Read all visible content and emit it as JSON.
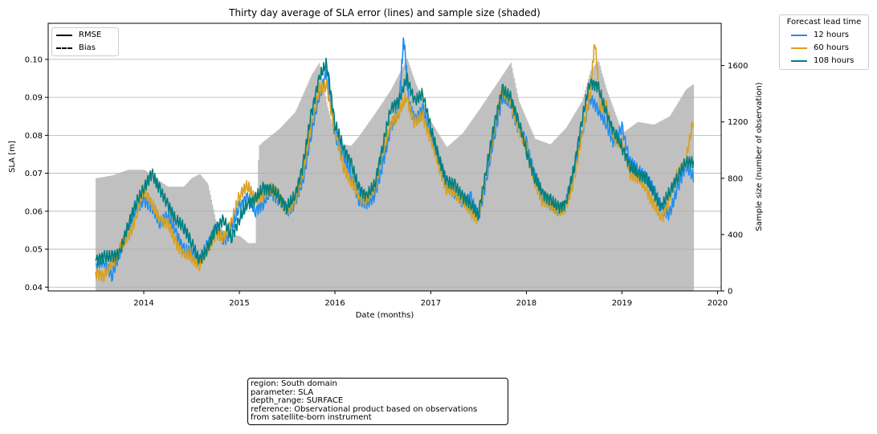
{
  "chart_data": {
    "type": "line",
    "title": "Thirty day average of SLA error (lines) and sample size (shaded)",
    "xlabel": "Date (months)",
    "ylabel": "SLA [m]",
    "y2label": "Sample size (number of observation)",
    "xlim": [
      "2013-01-01",
      "2020-01-15"
    ],
    "ylim": [
      0.039,
      0.1095
    ],
    "y2lim": [
      0,
      1600
    ],
    "y2max": 1900,
    "xticks": [
      "2014",
      "2015",
      "2016",
      "2017",
      "2018",
      "2019",
      "2020"
    ],
    "yticks": [
      "0.04",
      "0.05",
      "0.06",
      "0.07",
      "0.08",
      "0.09",
      "0.10"
    ],
    "y2ticks": [
      "0",
      "400",
      "800",
      "1200",
      "1600"
    ],
    "grid": "horizontal",
    "style_legend": {
      "placement": "upper-left",
      "items": [
        {
          "label": "RMSE",
          "dash": "solid"
        },
        {
          "label": "Bias",
          "dash": "dashed"
        }
      ]
    },
    "legend": {
      "title": "Forecast lead time",
      "placement": "outside-right-top"
    },
    "sample_size": {
      "color": "#c0c0c0",
      "dates": [
        "2013-07-01",
        "2013-09-01",
        "2013-11-01",
        "2014-01-01",
        "2014-02-01",
        "2014-03-01",
        "2014-04-01",
        "2014-06-01",
        "2014-07-01",
        "2014-08-01",
        "2014-09-01",
        "2014-10-01",
        "2014-11-01",
        "2014-12-01",
        "2015-01-01",
        "2015-02-01",
        "2015-03-01",
        "2015-03-15",
        "2015-04-01",
        "2015-06-01",
        "2015-08-01",
        "2015-09-01",
        "2015-10-01",
        "2015-11-01",
        "2015-12-01",
        "2016-01-01",
        "2016-02-01",
        "2016-03-01",
        "2016-04-01",
        "2016-06-01",
        "2016-08-01",
        "2016-10-01",
        "2016-11-01",
        "2017-01-01",
        "2017-03-01",
        "2017-05-01",
        "2017-07-01",
        "2017-09-01",
        "2017-11-01",
        "2017-12-01",
        "2018-02-01",
        "2018-04-01",
        "2018-06-01",
        "2018-08-01",
        "2018-09-01",
        "2018-10-01",
        "2018-11-01",
        "2019-01-01",
        "2019-03-01",
        "2019-05-01",
        "2019-07-01",
        "2019-09-01",
        "2019-10-01"
      ],
      "values": [
        800,
        820,
        860,
        860,
        820,
        780,
        740,
        740,
        800,
        830,
        760,
        500,
        420,
        400,
        390,
        340,
        340,
        1030,
        1060,
        1150,
        1270,
        1400,
        1530,
        1620,
        1310,
        1100,
        1040,
        1030,
        1100,
        1260,
        1430,
        1650,
        1480,
        1200,
        1020,
        1120,
        1280,
        1450,
        1620,
        1350,
        1080,
        1040,
        1160,
        1350,
        1560,
        1640,
        1430,
        1120,
        1200,
        1180,
        1240,
        1430,
        1470
      ]
    },
    "series": [
      {
        "name": "12 hours",
        "color": "#1f8ef1",
        "x": [
          "2013-07-01",
          "2013-08-01",
          "2013-09-01",
          "2013-10-01",
          "2013-11-01",
          "2013-12-01",
          "2014-01-01",
          "2014-02-01",
          "2014-03-01",
          "2014-04-01",
          "2014-05-01",
          "2014-06-01",
          "2014-07-01",
          "2014-08-01",
          "2014-09-01",
          "2014-10-01",
          "2014-11-01",
          "2014-12-01",
          "2015-01-01",
          "2015-02-01",
          "2015-03-01",
          "2015-04-01",
          "2015-05-01",
          "2015-06-01",
          "2015-07-01",
          "2015-08-01",
          "2015-09-01",
          "2015-10-01",
          "2015-11-01",
          "2015-12-01",
          "2016-01-01",
          "2016-02-01",
          "2016-03-01",
          "2016-04-01",
          "2016-05-01",
          "2016-06-01",
          "2016-07-01",
          "2016-08-01",
          "2016-09-01",
          "2016-09-20",
          "2016-10-10",
          "2016-11-01",
          "2016-12-01",
          "2017-01-01",
          "2017-02-01",
          "2017-03-01",
          "2017-04-01",
          "2017-05-01",
          "2017-06-01",
          "2017-07-01",
          "2017-08-01",
          "2017-09-01",
          "2017-10-01",
          "2017-11-01",
          "2017-12-01",
          "2018-01-01",
          "2018-02-01",
          "2018-03-01",
          "2018-04-01",
          "2018-05-01",
          "2018-06-01",
          "2018-07-01",
          "2018-08-01",
          "2018-09-01",
          "2018-10-01",
          "2018-11-01",
          "2018-12-01",
          "2019-01-01",
          "2019-02-01",
          "2019-03-01",
          "2019-04-01",
          "2019-05-01",
          "2019-06-01",
          "2019-07-01",
          "2019-08-01",
          "2019-09-01",
          "2019-10-01"
        ],
        "y": [
          0.046,
          0.047,
          0.043,
          0.049,
          0.055,
          0.06,
          0.063,
          0.061,
          0.057,
          0.059,
          0.055,
          0.05,
          0.049,
          0.047,
          0.051,
          0.056,
          0.052,
          0.055,
          0.061,
          0.064,
          0.06,
          0.062,
          0.065,
          0.063,
          0.06,
          0.062,
          0.068,
          0.08,
          0.09,
          0.097,
          0.08,
          0.075,
          0.07,
          0.063,
          0.062,
          0.064,
          0.072,
          0.082,
          0.087,
          0.106,
          0.088,
          0.084,
          0.087,
          0.08,
          0.074,
          0.067,
          0.065,
          0.062,
          0.064,
          0.058,
          0.068,
          0.08,
          0.09,
          0.088,
          0.082,
          0.078,
          0.07,
          0.064,
          0.062,
          0.06,
          0.062,
          0.07,
          0.08,
          0.09,
          0.087,
          0.083,
          0.078,
          0.082,
          0.073,
          0.071,
          0.069,
          0.066,
          0.061,
          0.059,
          0.066,
          0.072,
          0.069
        ]
      },
      {
        "name": "60 hours",
        "color": "#d9a122",
        "x": [
          "2013-07-01",
          "2013-08-01",
          "2013-09-01",
          "2013-10-01",
          "2013-11-01",
          "2013-12-01",
          "2014-01-01",
          "2014-02-01",
          "2014-03-01",
          "2014-04-01",
          "2014-05-01",
          "2014-06-01",
          "2014-07-01",
          "2014-08-01",
          "2014-09-01",
          "2014-10-01",
          "2014-11-01",
          "2014-12-01",
          "2015-01-01",
          "2015-02-01",
          "2015-03-01",
          "2015-04-01",
          "2015-05-01",
          "2015-06-01",
          "2015-07-01",
          "2015-08-01",
          "2015-09-01",
          "2015-10-01",
          "2015-11-01",
          "2015-12-01",
          "2016-01-01",
          "2016-02-01",
          "2016-03-01",
          "2016-04-01",
          "2016-05-01",
          "2016-06-01",
          "2016-07-01",
          "2016-08-01",
          "2016-09-01",
          "2016-10-01",
          "2016-11-01",
          "2016-12-01",
          "2017-01-01",
          "2017-02-01",
          "2017-03-01",
          "2017-04-01",
          "2017-05-01",
          "2017-06-01",
          "2017-07-01",
          "2017-08-01",
          "2017-09-01",
          "2017-10-01",
          "2017-11-01",
          "2017-12-01",
          "2018-01-01",
          "2018-02-01",
          "2018-03-01",
          "2018-04-01",
          "2018-05-01",
          "2018-06-01",
          "2018-07-01",
          "2018-08-01",
          "2018-09-01",
          "2018-09-20",
          "2018-10-10",
          "2018-11-01",
          "2018-12-01",
          "2019-01-01",
          "2019-02-01",
          "2019-03-01",
          "2019-04-01",
          "2019-05-01",
          "2019-06-01",
          "2019-07-01",
          "2019-08-01",
          "2019-09-01",
          "2019-10-01"
        ],
        "y": [
          0.044,
          0.043,
          0.046,
          0.05,
          0.053,
          0.058,
          0.066,
          0.062,
          0.058,
          0.057,
          0.052,
          0.049,
          0.048,
          0.046,
          0.05,
          0.054,
          0.053,
          0.057,
          0.064,
          0.067,
          0.063,
          0.064,
          0.066,
          0.064,
          0.06,
          0.063,
          0.07,
          0.082,
          0.092,
          0.093,
          0.081,
          0.072,
          0.068,
          0.064,
          0.063,
          0.066,
          0.075,
          0.083,
          0.086,
          0.09,
          0.083,
          0.085,
          0.079,
          0.072,
          0.066,
          0.065,
          0.063,
          0.06,
          0.058,
          0.07,
          0.082,
          0.092,
          0.089,
          0.082,
          0.077,
          0.068,
          0.063,
          0.062,
          0.06,
          0.061,
          0.068,
          0.08,
          0.091,
          0.105,
          0.087,
          0.088,
          0.079,
          0.078,
          0.07,
          0.069,
          0.066,
          0.062,
          0.058,
          0.063,
          0.07,
          0.073,
          0.084
        ]
      },
      {
        "name": "108 hours",
        "color": "#007f7f",
        "x": [
          "2013-07-01",
          "2013-08-01",
          "2013-09-01",
          "2013-10-01",
          "2013-11-01",
          "2013-12-01",
          "2014-01-01",
          "2014-02-01",
          "2014-03-01",
          "2014-04-01",
          "2014-05-01",
          "2014-06-01",
          "2014-07-01",
          "2014-08-01",
          "2014-09-01",
          "2014-10-01",
          "2014-11-01",
          "2014-12-01",
          "2015-01-01",
          "2015-02-01",
          "2015-03-01",
          "2015-04-01",
          "2015-05-01",
          "2015-06-01",
          "2015-07-01",
          "2015-08-01",
          "2015-09-01",
          "2015-10-01",
          "2015-11-01",
          "2015-12-01",
          "2016-01-01",
          "2016-02-01",
          "2016-03-01",
          "2016-04-01",
          "2016-05-01",
          "2016-06-01",
          "2016-07-01",
          "2016-08-01",
          "2016-09-01",
          "2016-10-01",
          "2016-11-01",
          "2016-12-01",
          "2017-01-01",
          "2017-02-01",
          "2017-03-01",
          "2017-04-01",
          "2017-05-01",
          "2017-06-01",
          "2017-07-01",
          "2017-08-01",
          "2017-09-01",
          "2017-10-01",
          "2017-11-01",
          "2017-12-01",
          "2018-01-01",
          "2018-02-01",
          "2018-03-01",
          "2018-04-01",
          "2018-05-01",
          "2018-06-01",
          "2018-07-01",
          "2018-08-01",
          "2018-09-01",
          "2018-10-01",
          "2018-11-01",
          "2018-12-01",
          "2019-01-01",
          "2019-02-01",
          "2019-03-01",
          "2019-04-01",
          "2019-05-01",
          "2019-06-01",
          "2019-07-01",
          "2019-08-01",
          "2019-09-01",
          "2019-10-01"
        ],
        "y": [
          0.047,
          0.048,
          0.048,
          0.049,
          0.056,
          0.062,
          0.066,
          0.07,
          0.066,
          0.062,
          0.058,
          0.056,
          0.052,
          0.047,
          0.05,
          0.055,
          0.058,
          0.053,
          0.058,
          0.062,
          0.063,
          0.066,
          0.066,
          0.064,
          0.061,
          0.064,
          0.072,
          0.085,
          0.095,
          0.099,
          0.083,
          0.077,
          0.073,
          0.066,
          0.064,
          0.067,
          0.077,
          0.087,
          0.089,
          0.095,
          0.089,
          0.091,
          0.082,
          0.074,
          0.068,
          0.067,
          0.064,
          0.062,
          0.059,
          0.071,
          0.083,
          0.092,
          0.09,
          0.084,
          0.076,
          0.069,
          0.065,
          0.063,
          0.061,
          0.062,
          0.071,
          0.084,
          0.094,
          0.093,
          0.086,
          0.081,
          0.077,
          0.072,
          0.07,
          0.069,
          0.065,
          0.061,
          0.065,
          0.069,
          0.073,
          0.073
        ]
      }
    ]
  },
  "info_box": {
    "lines": [
      "region: South domain",
      "parameter: SLA",
      "depth_range: SURFACE",
      "reference: Observational product based on observations",
      "from satellite-born instrument"
    ]
  }
}
